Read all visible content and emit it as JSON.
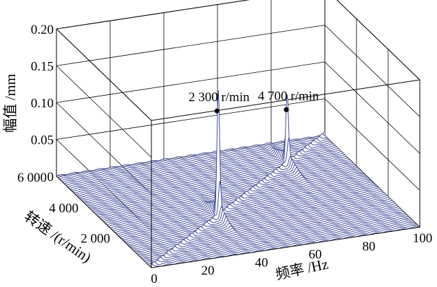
{
  "chart_data": {
    "type": "waterfall-3d",
    "x_axis": {
      "label": "频率 /Hz",
      "range": [
        0,
        100
      ],
      "ticks": [
        "0",
        "20",
        "40",
        "60",
        "80",
        "100"
      ]
    },
    "y_axis": {
      "label": "转速 /(r/min)",
      "range": [
        0,
        6000
      ],
      "ticks": [
        "2 000",
        "4 000",
        "6 000"
      ]
    },
    "z_axis": {
      "label": "幅值 /mm",
      "range": [
        0,
        0.2
      ],
      "ticks": [
        "0",
        "0.05",
        "0.10",
        "0.15",
        "0.20"
      ]
    },
    "grid": true,
    "line_color": "#2b3a8f",
    "annotations": [
      {
        "text": "2 300 r/min",
        "speed": 2300,
        "freq": 38,
        "amplitude": 0.148
      },
      {
        "text": "4 700 r/min",
        "speed": 4700,
        "freq": 78,
        "amplitude": 0.078
      }
    ]
  }
}
